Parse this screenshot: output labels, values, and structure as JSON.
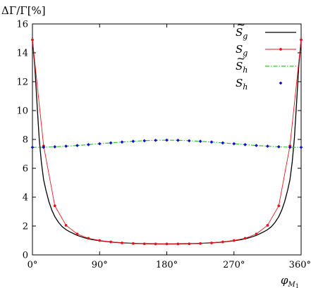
{
  "chart_data": {
    "type": "line",
    "ylabel": "ΔΓ/Γ[%]",
    "xlabel": "φ_{M1}",
    "xlim": [
      0,
      360
    ],
    "ylim": [
      0,
      16
    ],
    "xticks": [
      0,
      90,
      180,
      270,
      360
    ],
    "xtick_labels": [
      "0°",
      "90°",
      "180°",
      "270°",
      "360°"
    ],
    "yticks": [
      0,
      2,
      4,
      6,
      8,
      10,
      12,
      14,
      16
    ],
    "ytick_labels": [
      "0",
      "2",
      "4",
      "6",
      "8",
      "10",
      "12",
      "14",
      "16"
    ],
    "grid": false,
    "legend_position": "top-right",
    "series": [
      {
        "name": "S̃_g",
        "style": "solid-line",
        "color": "#000000",
        "x": [
          0,
          3,
          6,
          9,
          12,
          15,
          18,
          22,
          26,
          30,
          35,
          40,
          45,
          50,
          60,
          70,
          80,
          90,
          100,
          110,
          120,
          130,
          140,
          150,
          160,
          170,
          180,
          190,
          200,
          210,
          220,
          230,
          240,
          250,
          260,
          270,
          280,
          290,
          300,
          310,
          315,
          320,
          325,
          330,
          334,
          338,
          342,
          345,
          348,
          351,
          354,
          357,
          360
        ],
        "y": [
          14.9,
          13.2,
          10.6,
          8.1,
          6.4,
          5.2,
          4.5,
          3.7,
          3.1,
          2.65,
          2.25,
          1.95,
          1.75,
          1.6,
          1.35,
          1.18,
          1.06,
          0.98,
          0.92,
          0.87,
          0.84,
          0.81,
          0.79,
          0.78,
          0.77,
          0.76,
          0.76,
          0.76,
          0.77,
          0.78,
          0.79,
          0.81,
          0.84,
          0.87,
          0.92,
          0.98,
          1.06,
          1.18,
          1.35,
          1.6,
          1.75,
          1.95,
          2.25,
          2.65,
          3.1,
          3.7,
          4.5,
          5.2,
          6.4,
          8.1,
          10.6,
          13.2,
          14.9
        ]
      },
      {
        "name": "S_g",
        "style": "line-points",
        "color": "#e8141e",
        "x": [
          0,
          15,
          30,
          45,
          60,
          75,
          90,
          105,
          120,
          135,
          150,
          165,
          180,
          195,
          210,
          225,
          240,
          255,
          270,
          285,
          300,
          315,
          330,
          345,
          360
        ],
        "y": [
          14.9,
          7.55,
          3.4,
          2.05,
          1.45,
          1.15,
          1.0,
          0.9,
          0.83,
          0.79,
          0.77,
          0.76,
          0.76,
          0.76,
          0.77,
          0.79,
          0.83,
          0.9,
          1.0,
          1.15,
          1.45,
          2.05,
          3.4,
          7.55,
          14.9
        ]
      },
      {
        "name": "S̃_h",
        "style": "dash-dot-line",
        "color": "#2fc42f",
        "x": [
          0,
          15,
          30,
          45,
          60,
          75,
          90,
          105,
          120,
          135,
          150,
          165,
          180,
          195,
          210,
          225,
          240,
          255,
          270,
          285,
          300,
          315,
          330,
          345,
          360
        ],
        "y": [
          7.45,
          7.46,
          7.49,
          7.53,
          7.58,
          7.64,
          7.7,
          7.76,
          7.82,
          7.87,
          7.91,
          7.94,
          7.95,
          7.94,
          7.91,
          7.87,
          7.82,
          7.76,
          7.7,
          7.64,
          7.58,
          7.53,
          7.49,
          7.46,
          7.45
        ]
      },
      {
        "name": "S_h",
        "style": "points",
        "color": "#1010c8",
        "x": [
          0,
          15,
          30,
          45,
          60,
          75,
          90,
          105,
          120,
          135,
          150,
          165,
          180,
          195,
          210,
          225,
          240,
          255,
          270,
          285,
          300,
          315,
          330,
          345,
          360
        ],
        "y": [
          7.45,
          7.46,
          7.49,
          7.53,
          7.58,
          7.64,
          7.7,
          7.76,
          7.82,
          7.87,
          7.91,
          7.94,
          7.95,
          7.94,
          7.91,
          7.87,
          7.82,
          7.76,
          7.7,
          7.64,
          7.58,
          7.53,
          7.49,
          7.46,
          7.45
        ]
      }
    ]
  }
}
